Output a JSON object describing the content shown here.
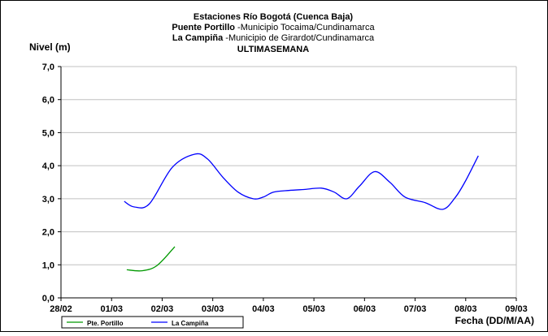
{
  "chart_data": {
    "type": "line",
    "title_lines": [
      {
        "segments": [
          {
            "text": "Estaciones Río Bogotá (Cuenca Baja)",
            "bold": true
          }
        ]
      },
      {
        "segments": [
          {
            "text": "Puente Portillo",
            "bold": true
          },
          {
            "text": " -Municipio Tocaima/Cundinamarca",
            "bold": false
          }
        ]
      },
      {
        "segments": [
          {
            "text": "La Campiña",
            "bold": true
          },
          {
            "text": " -Municipio de Girardot/Cundinamarca",
            "bold": false
          }
        ]
      },
      {
        "segments": [
          {
            "text": "ULTIMASEMANA",
            "bold": true
          }
        ]
      }
    ],
    "ylabel": "Nivel (m)",
    "xlabel": "Fecha (DD/M/AA)",
    "ylim": [
      0,
      7
    ],
    "yticks": [
      "0,0",
      "1,0",
      "2,0",
      "3,0",
      "4,0",
      "5,0",
      "6,0",
      "7,0"
    ],
    "xlim": [
      0,
      9
    ],
    "xticks": [
      "28/02",
      "01/03",
      "02/03",
      "03/03",
      "04/03",
      "05/03",
      "06/03",
      "07/03",
      "08/03",
      "09/03"
    ],
    "grid": "horizontal",
    "legend_position": "bottom-left",
    "series": [
      {
        "name": "Pte. Portillo",
        "color": "#009900",
        "points": [
          [
            1.3,
            0.85
          ],
          [
            1.6,
            0.82
          ],
          [
            1.9,
            0.98
          ],
          [
            2.25,
            1.55
          ]
        ]
      },
      {
        "name": "La Campiña",
        "color": "#0000ff",
        "points": [
          [
            1.25,
            2.92
          ],
          [
            1.45,
            2.75
          ],
          [
            1.75,
            2.85
          ],
          [
            2.2,
            3.95
          ],
          [
            2.65,
            4.35
          ],
          [
            2.9,
            4.2
          ],
          [
            3.2,
            3.65
          ],
          [
            3.5,
            3.2
          ],
          [
            3.8,
            3.0
          ],
          [
            4.0,
            3.05
          ],
          [
            4.2,
            3.2
          ],
          [
            4.5,
            3.25
          ],
          [
            4.8,
            3.28
          ],
          [
            5.15,
            3.32
          ],
          [
            5.4,
            3.2
          ],
          [
            5.65,
            3.0
          ],
          [
            5.9,
            3.38
          ],
          [
            6.2,
            3.82
          ],
          [
            6.5,
            3.5
          ],
          [
            6.8,
            3.05
          ],
          [
            7.2,
            2.88
          ],
          [
            7.55,
            2.68
          ],
          [
            7.8,
            3.05
          ],
          [
            8.0,
            3.55
          ],
          [
            8.25,
            4.3
          ]
        ]
      }
    ]
  }
}
